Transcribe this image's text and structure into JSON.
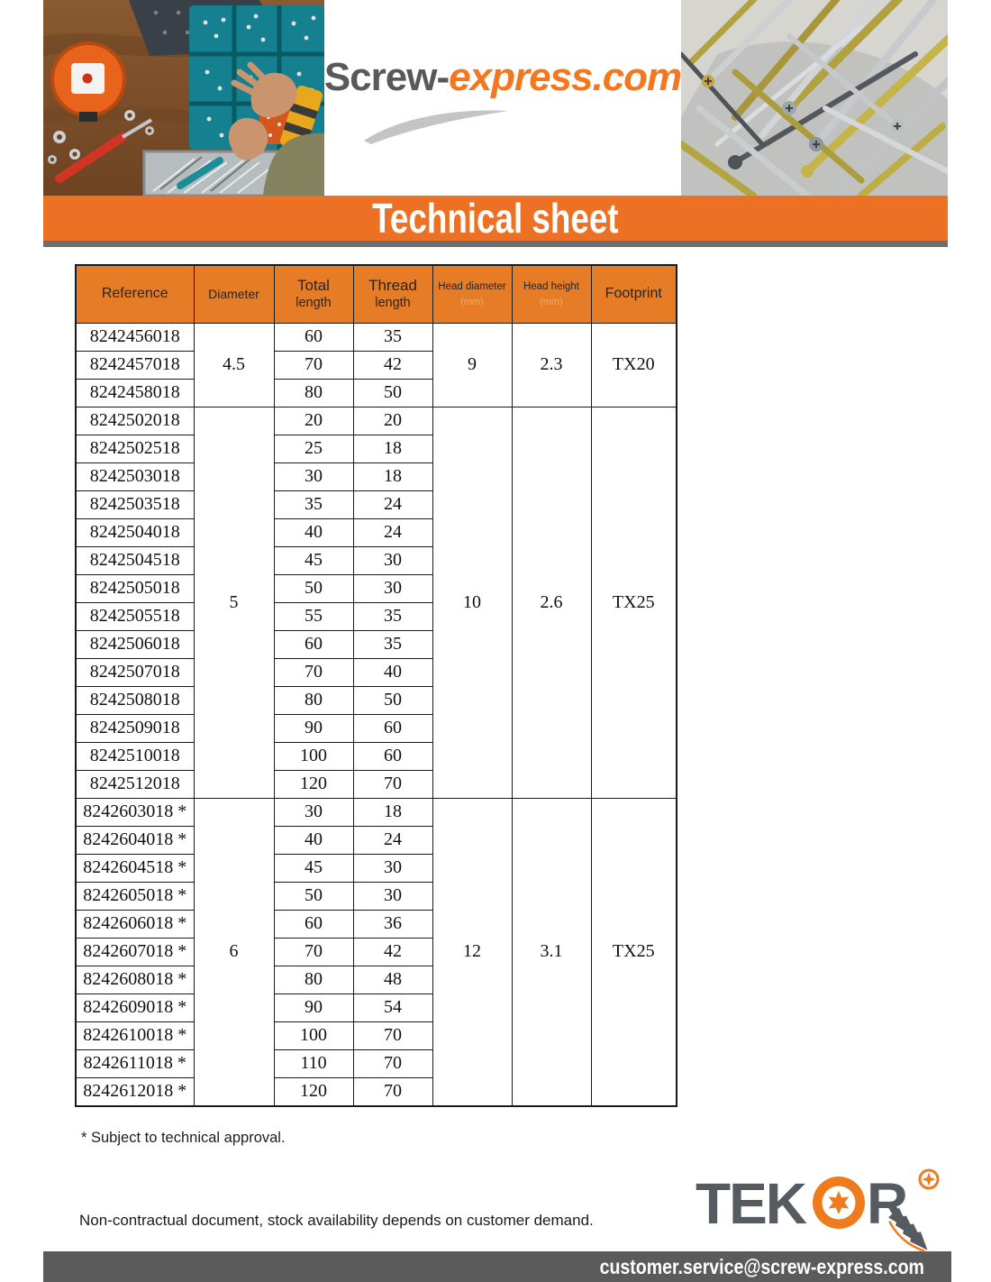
{
  "brand": {
    "name_dark": "Screw-",
    "name_orange": "express.com"
  },
  "banner": {
    "title": "Technical sheet"
  },
  "table": {
    "columns": {
      "reference": "Reference",
      "diameter": "Diameter",
      "total_1": "Total",
      "total_2": "length",
      "thread_1": "Thread",
      "thread_2": "length",
      "head_diameter": "Head diameter",
      "head_height": "Head height",
      "footprint": "Footprint",
      "unit_ghost": "(mm)"
    },
    "groups": [
      {
        "diameter": "4.5",
        "head_diameter": "9",
        "head_height": "2.3",
        "footprint": "TX20",
        "rows": [
          {
            "reference": "8242456018",
            "total_length": "60",
            "thread_length": "35"
          },
          {
            "reference": "8242457018",
            "total_length": "70",
            "thread_length": "42"
          },
          {
            "reference": "8242458018",
            "total_length": "80",
            "thread_length": "50"
          }
        ]
      },
      {
        "diameter": "5",
        "head_diameter": "10",
        "head_height": "2.6",
        "footprint": "TX25",
        "rows": [
          {
            "reference": "8242502018",
            "total_length": "20",
            "thread_length": "20"
          },
          {
            "reference": "8242502518",
            "total_length": "25",
            "thread_length": "18"
          },
          {
            "reference": "8242503018",
            "total_length": "30",
            "thread_length": "18"
          },
          {
            "reference": "8242503518",
            "total_length": "35",
            "thread_length": "24"
          },
          {
            "reference": "8242504018",
            "total_length": "40",
            "thread_length": "24"
          },
          {
            "reference": "8242504518",
            "total_length": "45",
            "thread_length": "30"
          },
          {
            "reference": "8242505018",
            "total_length": "50",
            "thread_length": "30"
          },
          {
            "reference": "8242505518",
            "total_length": "55",
            "thread_length": "35"
          },
          {
            "reference": "8242506018",
            "total_length": "60",
            "thread_length": "35"
          },
          {
            "reference": "8242507018",
            "total_length": "70",
            "thread_length": "40"
          },
          {
            "reference": "8242508018",
            "total_length": "80",
            "thread_length": "50"
          },
          {
            "reference": "8242509018",
            "total_length": "90",
            "thread_length": "60"
          },
          {
            "reference": "8242510018",
            "total_length": "100",
            "thread_length": "60"
          },
          {
            "reference": "8242512018",
            "total_length": "120",
            "thread_length": "70"
          }
        ]
      },
      {
        "diameter": "6",
        "head_diameter": "12",
        "head_height": "3.1",
        "footprint": "TX25",
        "rows": [
          {
            "reference": "8242603018 *",
            "total_length": "30",
            "thread_length": "18"
          },
          {
            "reference": "8242604018 *",
            "total_length": "40",
            "thread_length": "24"
          },
          {
            "reference": "8242604518 *",
            "total_length": "45",
            "thread_length": "30"
          },
          {
            "reference": "8242605018 *",
            "total_length": "50",
            "thread_length": "30"
          },
          {
            "reference": "8242606018 *",
            "total_length": "60",
            "thread_length": "36"
          },
          {
            "reference": "8242607018 *",
            "total_length": "70",
            "thread_length": "42"
          },
          {
            "reference": "8242608018 *",
            "total_length": "80",
            "thread_length": "48"
          },
          {
            "reference": "8242609018 *",
            "total_length": "90",
            "thread_length": "54"
          },
          {
            "reference": "8242610018 *",
            "total_length": "100",
            "thread_length": "70"
          },
          {
            "reference": "8242611018 *",
            "total_length": "110",
            "thread_length": "70"
          },
          {
            "reference": "8242612018 *",
            "total_length": "120",
            "thread_length": "70"
          }
        ]
      }
    ]
  },
  "notes": {
    "approval": "* Subject to technical approval.",
    "disclaimer": "Non-contractual document, stock availability depends on customer demand."
  },
  "tekor": {
    "tek": "TEK",
    "r": "R"
  },
  "footer": {
    "email": "customer.service@screw-express.com"
  },
  "colors": {
    "banner_orange": "#ED7125",
    "header_orange": "#E67C26",
    "logo_orange": "#F4771F",
    "logo_gray": "#58595B",
    "footer_gray": "#5B5B5B",
    "tekor_gray": "#565B61",
    "tekor_orange": "#EE7B1E"
  }
}
